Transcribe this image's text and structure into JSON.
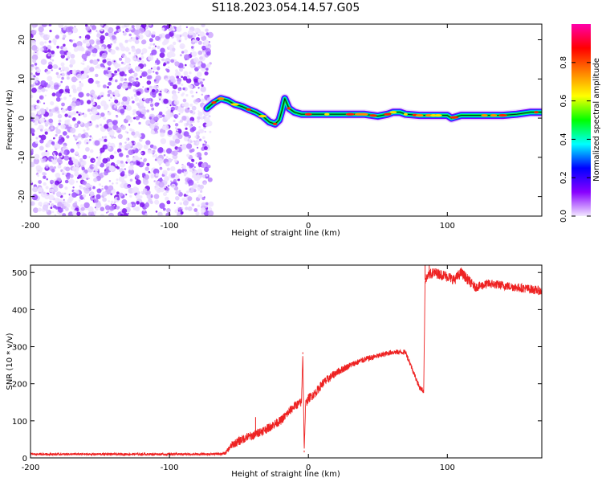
{
  "title": "S118.2023.054.14.57.G05",
  "chart_data": [
    {
      "type": "heatmap",
      "xlabel": "Height of straight line (km)",
      "ylabel": "Frequency (Hz)",
      "xlim": [
        -200,
        168
      ],
      "ylim": [
        -25,
        24
      ],
      "x_ticks": [
        -200,
        -100,
        0,
        100
      ],
      "y_ticks": [
        -20,
        -10,
        0,
        10,
        20
      ],
      "grid": false,
      "noise_region_x": [
        -200,
        -70
      ],
      "ridge": {
        "x": [
          -73,
          -68,
          -63,
          -58,
          -53,
          -48,
          -43,
          -38,
          -33,
          -28,
          -24,
          -21,
          -19,
          -17,
          -14,
          -10,
          -5,
          0,
          10,
          20,
          30,
          40,
          50,
          57,
          61,
          66,
          70,
          80,
          90,
          100,
          103,
          105,
          110,
          120,
          130,
          140,
          150,
          160,
          168
        ],
        "y": [
          2.5,
          4.0,
          5.0,
          4.5,
          3.5,
          3.0,
          2.2,
          1.5,
          0.5,
          -1.0,
          -1.5,
          -0.5,
          2.0,
          5.0,
          2.5,
          1.5,
          1.0,
          1.0,
          1.0,
          1.0,
          1.0,
          1.0,
          0.5,
          1.0,
          1.5,
          1.5,
          1.0,
          0.7,
          0.7,
          0.7,
          0.0,
          0.2,
          0.7,
          0.7,
          0.7,
          0.7,
          1.0,
          1.5,
          1.5
        ]
      },
      "colorbar": {
        "label": "Normalized spectral amplitude",
        "range": [
          0.0,
          1.0
        ],
        "ticks": [
          "0.0",
          "0.2",
          "0.4",
          "0.6",
          "0.8"
        ],
        "colormap": [
          "#f2e8ff",
          "#8800ff",
          "#0000ff",
          "#00ffff",
          "#00ff00",
          "#ffff00",
          "#ff8000",
          "#ff0000",
          "#ff00aa"
        ]
      }
    },
    {
      "type": "line",
      "xlabel": "Height of straight line (km)",
      "ylabel": "SNR (10 * v/v)",
      "xlim": [
        -200,
        168
      ],
      "ylim": [
        0,
        520
      ],
      "x_ticks": [
        -200,
        -100,
        0,
        100
      ],
      "y_ticks": [
        0,
        100,
        200,
        300,
        400,
        500
      ],
      "grid": false,
      "series": [
        {
          "color": "#ee2222",
          "x": [
            -200,
            -150,
            -100,
            -70,
            -60,
            -55,
            -50,
            -45,
            -40,
            -35,
            -30,
            -25,
            -20,
            -15,
            -10,
            -5,
            -4,
            -3,
            -2,
            0,
            5,
            10,
            15,
            20,
            25,
            30,
            40,
            50,
            60,
            70,
            80,
            83,
            84,
            86,
            90,
            100,
            105,
            110,
            115,
            120,
            130,
            140,
            150,
            160,
            168
          ],
          "y": [
            10,
            10,
            10,
            10,
            12,
            35,
            45,
            55,
            60,
            70,
            78,
            90,
            100,
            120,
            140,
            150,
            280,
            20,
            145,
            160,
            175,
            200,
            215,
            230,
            240,
            250,
            265,
            275,
            285,
            285,
            190,
            180,
            480,
            490,
            500,
            490,
            480,
            500,
            480,
            460,
            470,
            465,
            460,
            455,
            450
          ],
          "noise": [
            3,
            3,
            3,
            3,
            4,
            10,
            12,
            12,
            12,
            12,
            12,
            12,
            12,
            12,
            12,
            12,
            0,
            0,
            12,
            12,
            12,
            12,
            12,
            10,
            10,
            8,
            8,
            7,
            7,
            7,
            7,
            7,
            12,
            12,
            14,
            14,
            14,
            14,
            14,
            12,
            12,
            12,
            12,
            12,
            12
          ]
        }
      ]
    }
  ]
}
